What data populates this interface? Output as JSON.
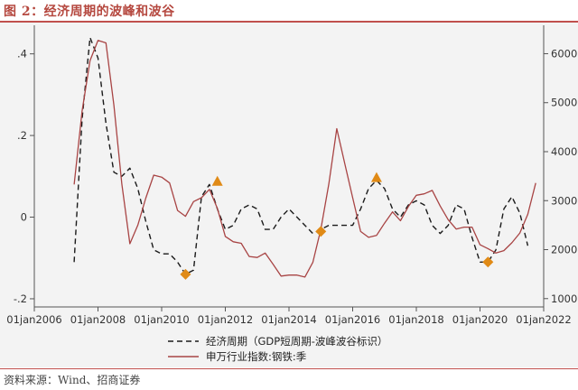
{
  "figure": {
    "title": "图 2：经济周期的波峰和波谷",
    "source": "资料来源：Wind、招商证券"
  },
  "colors": {
    "econ_line": "#1a1a1a",
    "steel_line": "#a84444",
    "marker": "#e08a16",
    "title": "#b5483f",
    "plot_bg": "#f3f3f3"
  },
  "chart_data": {
    "type": "line",
    "title": "",
    "xlabel": "",
    "ylabel": "",
    "x_axis": {
      "type": "date",
      "range": [
        2006.0,
        2022.0
      ],
      "ticks": [
        {
          "value": 2006,
          "label": "01jan2006"
        },
        {
          "value": 2008,
          "label": "01jan2008"
        },
        {
          "value": 2010,
          "label": "01jan2010"
        },
        {
          "value": 2012,
          "label": "01jan2012"
        },
        {
          "value": 2014,
          "label": "01jan2014"
        },
        {
          "value": 2016,
          "label": "01jan2016"
        },
        {
          "value": 2018,
          "label": "01jan2018"
        },
        {
          "value": 2020,
          "label": "01jan2020"
        },
        {
          "value": 2022,
          "label": "01jan2022"
        }
      ]
    },
    "y_left": {
      "range": [
        -0.22,
        0.47
      ],
      "ticks": [
        {
          "value": -0.2,
          "label": "-.2"
        },
        {
          "value": 0,
          "label": "0"
        },
        {
          "value": 0.2,
          "label": ".2"
        },
        {
          "value": 0.4,
          "label": ".4"
        }
      ]
    },
    "y_right": {
      "range": [
        830,
        6580
      ],
      "ticks": [
        {
          "value": 1000,
          "label": "1000"
        },
        {
          "value": 2000,
          "label": "2000"
        },
        {
          "value": 3000,
          "label": "3000"
        },
        {
          "value": 4000,
          "label": "4000"
        },
        {
          "value": 5000,
          "label": "5000"
        },
        {
          "value": 6000,
          "label": "6000"
        }
      ]
    },
    "grid": false,
    "legend_position": "bottom",
    "series": [
      {
        "name": "经济周期（GDP短周期-波峰波谷标识）",
        "axis": "left",
        "style": "dashed",
        "x": [
          2007.25,
          2007.5,
          2007.75,
          2008.0,
          2008.25,
          2008.5,
          2008.75,
          2009.0,
          2009.25,
          2009.5,
          2009.75,
          2010.0,
          2010.25,
          2010.5,
          2010.75,
          2011.0,
          2011.25,
          2011.5,
          2011.75,
          2012.0,
          2012.25,
          2012.5,
          2012.75,
          2013.0,
          2013.25,
          2013.5,
          2013.75,
          2014.0,
          2014.25,
          2014.5,
          2014.75,
          2015.0,
          2015.25,
          2015.5,
          2015.75,
          2016.0,
          2016.25,
          2016.5,
          2016.75,
          2017.0,
          2017.25,
          2017.5,
          2017.75,
          2018.0,
          2018.25,
          2018.5,
          2018.75,
          2019.0,
          2019.25,
          2019.5,
          2019.75,
          2020.0,
          2020.25,
          2020.5,
          2020.75,
          2021.0,
          2021.25,
          2021.5
        ],
        "y": [
          -0.11,
          0.24,
          0.44,
          0.39,
          0.23,
          0.11,
          0.1,
          0.12,
          0.07,
          -0.01,
          -0.08,
          -0.09,
          -0.09,
          -0.11,
          -0.14,
          -0.13,
          0.05,
          0.08,
          0.02,
          -0.03,
          -0.02,
          0.02,
          0.03,
          0.02,
          -0.03,
          -0.03,
          0.0,
          0.02,
          0.0,
          -0.02,
          -0.04,
          -0.03,
          -0.02,
          -0.02,
          -0.02,
          -0.02,
          0.02,
          0.07,
          0.09,
          0.07,
          0.02,
          0.0,
          0.03,
          0.04,
          0.03,
          -0.02,
          -0.04,
          -0.02,
          0.03,
          0.02,
          -0.05,
          -0.11,
          -0.11,
          -0.08,
          0.02,
          0.05,
          0.01,
          -0.07
        ]
      },
      {
        "name": "申万行业指数:钢铁:季",
        "axis": "right",
        "style": "solid",
        "x": [
          2007.25,
          2007.5,
          2007.75,
          2008.0,
          2008.25,
          2008.5,
          2008.75,
          2009.0,
          2009.25,
          2009.5,
          2009.75,
          2010.0,
          2010.25,
          2010.5,
          2010.75,
          2011.0,
          2011.25,
          2011.5,
          2011.75,
          2012.0,
          2012.25,
          2012.5,
          2012.75,
          2013.0,
          2013.25,
          2013.5,
          2013.75,
          2014.0,
          2014.25,
          2014.5,
          2014.75,
          2015.0,
          2015.25,
          2015.5,
          2015.75,
          2016.0,
          2016.25,
          2016.5,
          2016.75,
          2017.0,
          2017.25,
          2017.5,
          2017.75,
          2018.0,
          2018.25,
          2018.5,
          2018.75,
          2019.0,
          2019.25,
          2019.5,
          2019.75,
          2020.0,
          2020.25,
          2020.5,
          2020.75,
          2021.0,
          2021.25,
          2021.5,
          2021.75
        ],
        "y": [
          3330,
          4830,
          5860,
          6270,
          6220,
          4950,
          3340,
          2120,
          2500,
          3050,
          3520,
          3480,
          3360,
          2800,
          2680,
          2980,
          3060,
          3230,
          2840,
          2270,
          2160,
          2130,
          1860,
          1840,
          1930,
          1700,
          1460,
          1480,
          1480,
          1440,
          1740,
          2420,
          3340,
          4470,
          3760,
          3060,
          2370,
          2250,
          2290,
          2540,
          2770,
          2590,
          2880,
          3110,
          3140,
          3210,
          2890,
          2610,
          2420,
          2460,
          2460,
          2100,
          2020,
          1930,
          1980,
          2140,
          2340,
          2720,
          3360
        ]
      },
      {
        "name": "",
        "type": "markers",
        "axis": "left",
        "marker": "diamond",
        "x": [
          2010.75,
          2020.25
        ],
        "y": [
          -0.14,
          -0.11
        ]
      },
      {
        "name": "",
        "type": "markers",
        "axis": "left",
        "marker": "triangle",
        "x": [
          2011.75,
          2016.75
        ],
        "y": [
          0.088,
          0.097
        ]
      },
      {
        "name": "",
        "type": "markers",
        "axis": "left",
        "marker": "diamond",
        "x": [
          2015.0
        ],
        "y": [
          -0.035
        ]
      }
    ],
    "legend": [
      {
        "label": "经济周期（GDP短周期-波峰波谷标识）",
        "style": "dashed"
      },
      {
        "label": "申万行业指数:钢铁:季",
        "style": "solid"
      }
    ]
  }
}
